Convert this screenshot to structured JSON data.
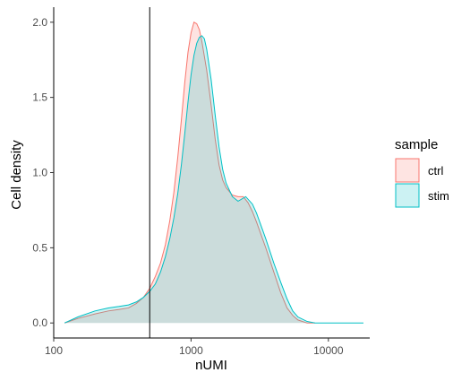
{
  "chart_data": {
    "type": "area",
    "title": "",
    "xlabel": "nUMI",
    "ylabel": "Cell density",
    "x_scale": "log10",
    "xlim": [
      100,
      20000
    ],
    "ylim": [
      -0.1,
      2.1
    ],
    "x_ticks": [
      100,
      1000,
      10000
    ],
    "x_tick_labels": [
      "100",
      "1000",
      "10000"
    ],
    "y_ticks": [
      0.0,
      0.5,
      1.0,
      1.5,
      2.0
    ],
    "y_tick_labels": [
      "0.0",
      "0.5",
      "1.0",
      "1.5",
      "2.0"
    ],
    "grid": false,
    "vline": 500,
    "legend": {
      "title": "sample",
      "position": "right"
    },
    "series": [
      {
        "name": "ctrl",
        "line_color": "#F8766D",
        "fill_color": "#F8766D",
        "points": [
          [
            120,
            0.0
          ],
          [
            150,
            0.03
          ],
          [
            200,
            0.06
          ],
          [
            250,
            0.08
          ],
          [
            300,
            0.09
          ],
          [
            350,
            0.1
          ],
          [
            400,
            0.13
          ],
          [
            450,
            0.17
          ],
          [
            500,
            0.23
          ],
          [
            550,
            0.31
          ],
          [
            600,
            0.4
          ],
          [
            650,
            0.52
          ],
          [
            700,
            0.68
          ],
          [
            750,
            0.87
          ],
          [
            800,
            1.1
          ],
          [
            850,
            1.35
          ],
          [
            900,
            1.6
          ],
          [
            950,
            1.8
          ],
          [
            1000,
            1.93
          ],
          [
            1050,
            2.0
          ],
          [
            1100,
            1.99
          ],
          [
            1150,
            1.95
          ],
          [
            1200,
            1.87
          ],
          [
            1300,
            1.68
          ],
          [
            1400,
            1.45
          ],
          [
            1500,
            1.22
          ],
          [
            1600,
            1.05
          ],
          [
            1700,
            0.95
          ],
          [
            1800,
            0.9
          ],
          [
            2000,
            0.85
          ],
          [
            2200,
            0.84
          ],
          [
            2400,
            0.84
          ],
          [
            2600,
            0.8
          ],
          [
            2800,
            0.74
          ],
          [
            3000,
            0.67
          ],
          [
            3500,
            0.5
          ],
          [
            4000,
            0.34
          ],
          [
            4500,
            0.2
          ],
          [
            5000,
            0.1
          ],
          [
            5500,
            0.05
          ],
          [
            6000,
            0.02
          ],
          [
            7000,
            0.0
          ],
          [
            8000,
            0.0
          ]
        ]
      },
      {
        "name": "stim",
        "line_color": "#00BFC4",
        "fill_color": "#00BFC4",
        "points": [
          [
            120,
            0.0
          ],
          [
            150,
            0.04
          ],
          [
            200,
            0.08
          ],
          [
            250,
            0.1
          ],
          [
            300,
            0.11
          ],
          [
            350,
            0.12
          ],
          [
            400,
            0.14
          ],
          [
            450,
            0.17
          ],
          [
            500,
            0.21
          ],
          [
            550,
            0.26
          ],
          [
            600,
            0.34
          ],
          [
            650,
            0.44
          ],
          [
            700,
            0.56
          ],
          [
            750,
            0.7
          ],
          [
            800,
            0.86
          ],
          [
            850,
            1.05
          ],
          [
            900,
            1.26
          ],
          [
            950,
            1.47
          ],
          [
            1000,
            1.65
          ],
          [
            1050,
            1.78
          ],
          [
            1100,
            1.86
          ],
          [
            1150,
            1.9
          ],
          [
            1200,
            1.91
          ],
          [
            1250,
            1.89
          ],
          [
            1300,
            1.82
          ],
          [
            1400,
            1.62
          ],
          [
            1500,
            1.38
          ],
          [
            1600,
            1.17
          ],
          [
            1700,
            1.02
          ],
          [
            1800,
            0.93
          ],
          [
            2000,
            0.84
          ],
          [
            2200,
            0.81
          ],
          [
            2500,
            0.84
          ],
          [
            2800,
            0.79
          ],
          [
            3000,
            0.73
          ],
          [
            3500,
            0.56
          ],
          [
            4000,
            0.4
          ],
          [
            4500,
            0.27
          ],
          [
            5000,
            0.16
          ],
          [
            5500,
            0.08
          ],
          [
            6000,
            0.04
          ],
          [
            7000,
            0.01
          ],
          [
            8000,
            0.0
          ],
          [
            10000,
            0.0
          ],
          [
            18000,
            0.0
          ]
        ]
      }
    ]
  }
}
